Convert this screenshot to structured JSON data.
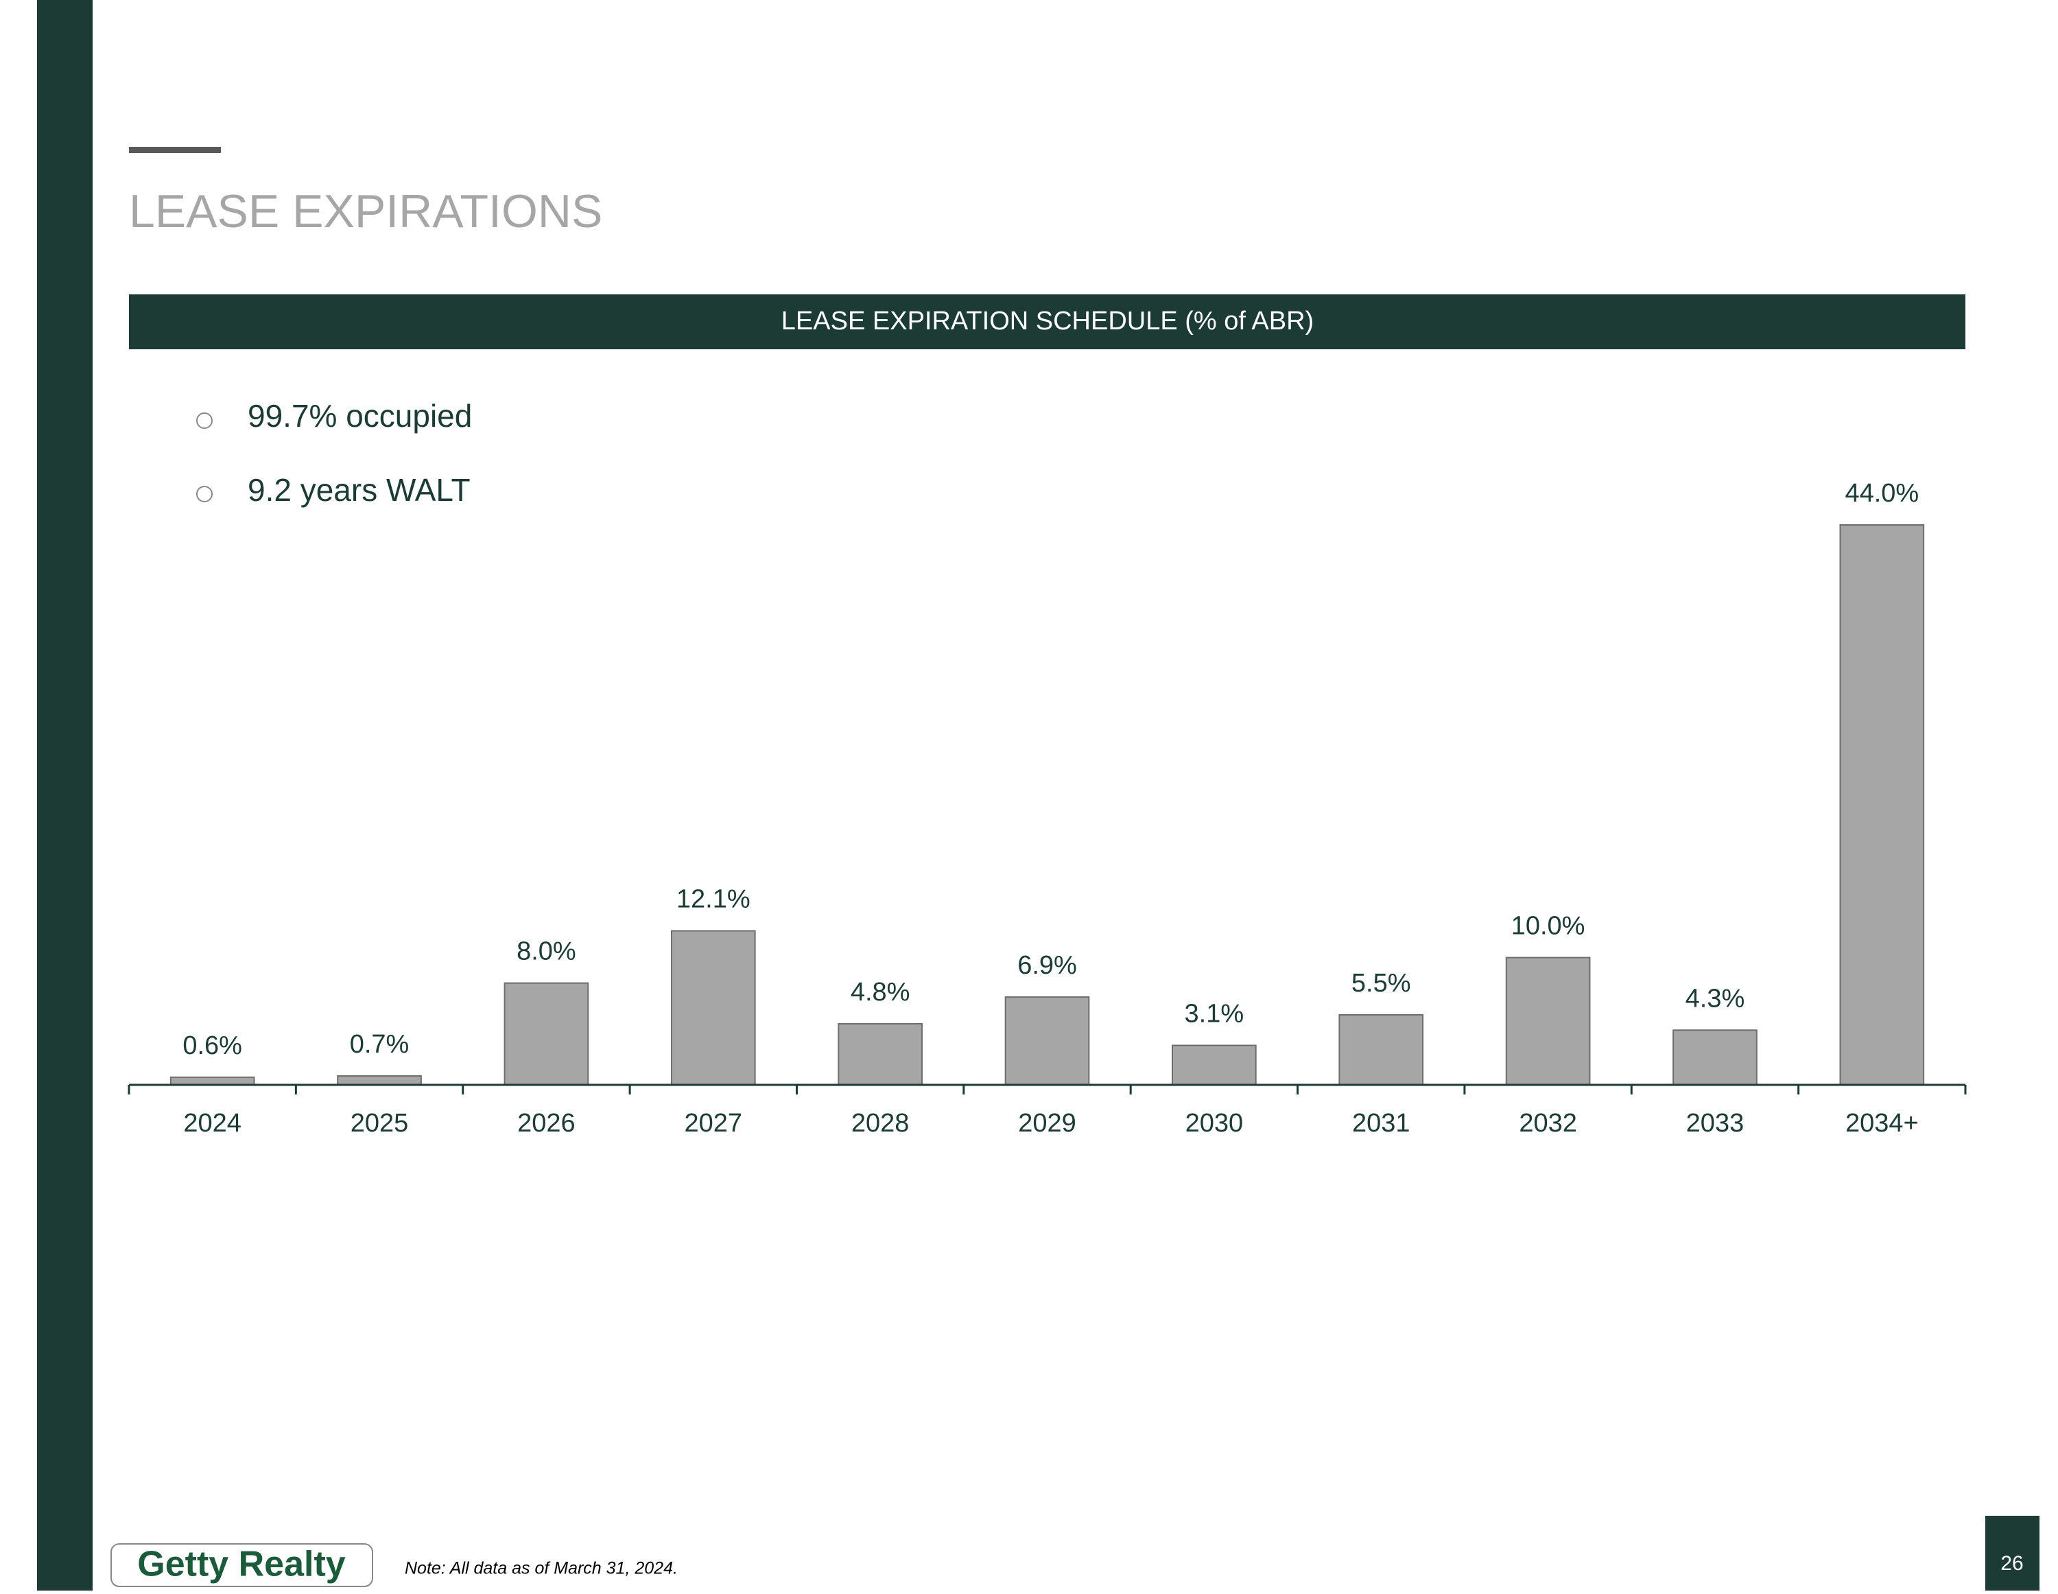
{
  "slide": {
    "title": "LEASE EXPIRATIONS",
    "bullets": [
      "99.7% occupied",
      "9.2 years WALT"
    ],
    "logo": "Getty Realty",
    "note": "Note: All data as of March 31, 2024.",
    "page_number": "26"
  },
  "chart_data": {
    "type": "bar",
    "title": "LEASE EXPIRATION SCHEDULE (% of ABR)",
    "categories": [
      "2024",
      "2025",
      "2026",
      "2027",
      "2028",
      "2029",
      "2030",
      "2031",
      "2032",
      "2033",
      "2034+"
    ],
    "values": [
      0.6,
      0.7,
      8.0,
      12.1,
      4.8,
      6.9,
      3.1,
      5.5,
      10.0,
      4.3,
      44.0
    ],
    "value_labels": [
      "0.6%",
      "0.7%",
      "8.0%",
      "12.1%",
      "4.8%",
      "6.9%",
      "3.1%",
      "5.5%",
      "10.0%",
      "4.3%",
      "44.0%"
    ],
    "color": "#a6a6a6"
  }
}
